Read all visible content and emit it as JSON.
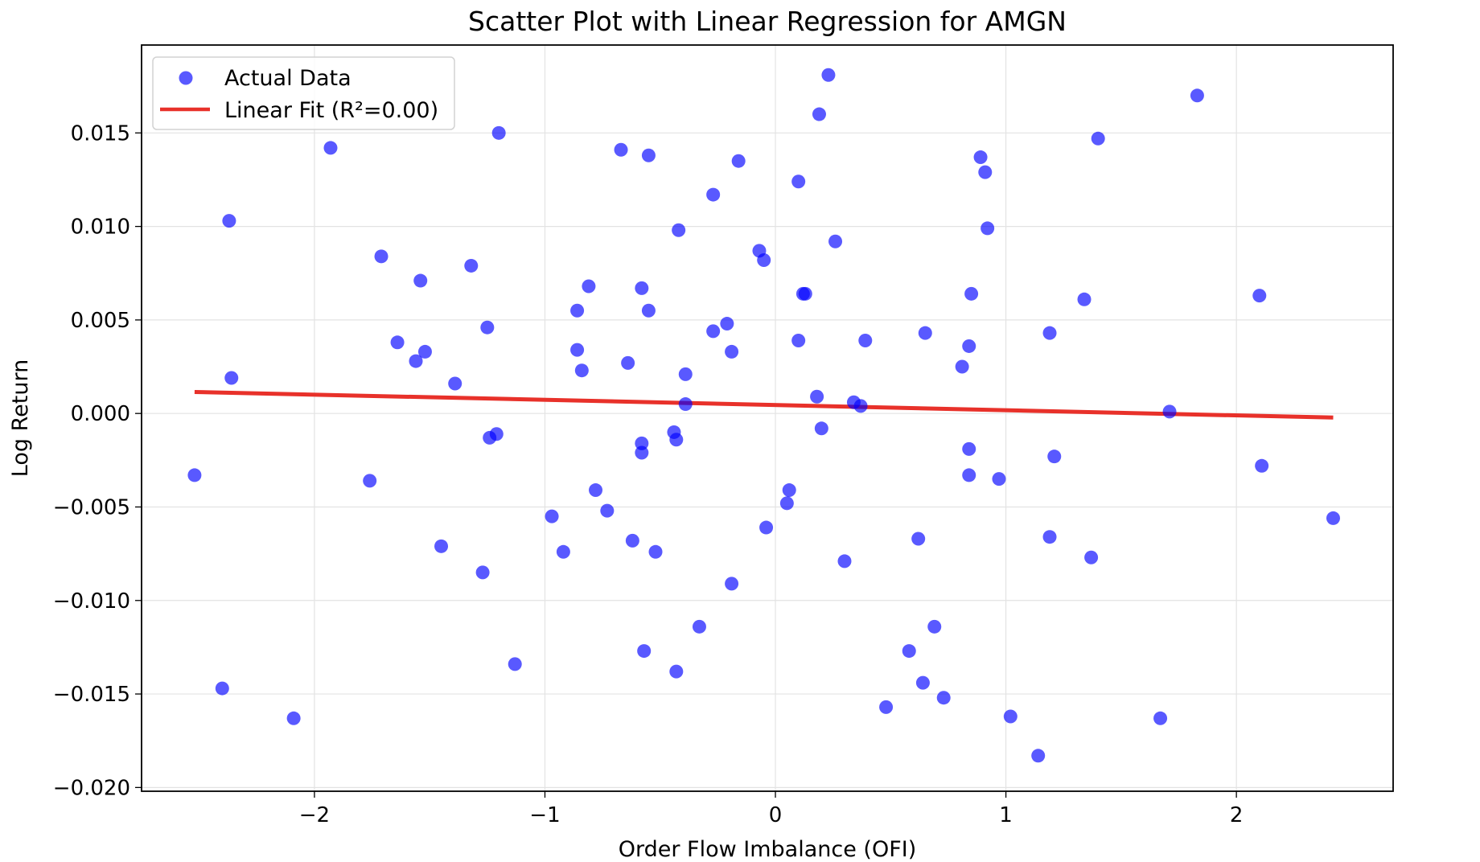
{
  "chart_data": {
    "type": "scatter",
    "title": "Scatter Plot with Linear Regression for AMGN",
    "xlabel": "Order Flow Imbalance (OFI)",
    "ylabel": "Log Return",
    "xlim": [
      -2.75,
      2.68
    ],
    "ylim": [
      -0.0202,
      0.0197
    ],
    "xticks": [
      -2,
      -1,
      0,
      1,
      2
    ],
    "xtick_labels": [
      "−2",
      "−1",
      "0",
      "1",
      "2"
    ],
    "yticks": [
      -0.02,
      -0.015,
      -0.01,
      -0.005,
      0.0,
      0.005,
      0.01,
      0.015
    ],
    "ytick_labels": [
      "−0.020",
      "−0.015",
      "−0.010",
      "−0.005",
      "0.000",
      "0.005",
      "0.010",
      "0.015"
    ],
    "grid": true,
    "legend_position": "top-left",
    "legend": {
      "scatter_label": "Actual Data",
      "fit_label": "Linear Fit (R²=0.00)"
    },
    "colors": {
      "points": "#0000ff",
      "fit_line": "#e8312a"
    },
    "series": [
      {
        "name": "Actual Data",
        "type": "scatter",
        "points": [
          [
            -2.52,
            -0.0033
          ],
          [
            -2.4,
            -0.0147
          ],
          [
            -2.37,
            0.0103
          ],
          [
            -2.36,
            0.0019
          ],
          [
            -2.09,
            -0.0163
          ],
          [
            -1.93,
            0.0142
          ],
          [
            -1.76,
            -0.0036
          ],
          [
            -1.71,
            0.0084
          ],
          [
            -1.64,
            0.0038
          ],
          [
            -1.56,
            0.0028
          ],
          [
            -1.54,
            0.0071
          ],
          [
            -1.52,
            0.0033
          ],
          [
            -1.45,
            -0.0071
          ],
          [
            -1.39,
            0.0016
          ],
          [
            -1.32,
            0.0079
          ],
          [
            -1.27,
            -0.0085
          ],
          [
            -1.25,
            0.0046
          ],
          [
            -1.24,
            -0.0013
          ],
          [
            -1.21,
            -0.0011
          ],
          [
            -1.2,
            0.015
          ],
          [
            -1.13,
            -0.0134
          ],
          [
            -0.97,
            -0.0055
          ],
          [
            -0.92,
            -0.0074
          ],
          [
            -0.86,
            0.0055
          ],
          [
            -0.86,
            0.0034
          ],
          [
            -0.84,
            0.0023
          ],
          [
            -0.81,
            0.0068
          ],
          [
            -0.78,
            -0.0041
          ],
          [
            -0.73,
            -0.0052
          ],
          [
            -0.67,
            0.0141
          ],
          [
            -0.64,
            0.0027
          ],
          [
            -0.62,
            -0.0068
          ],
          [
            -0.58,
            0.0067
          ],
          [
            -0.58,
            -0.0016
          ],
          [
            -0.58,
            -0.0021
          ],
          [
            -0.57,
            -0.0127
          ],
          [
            -0.55,
            0.0138
          ],
          [
            -0.55,
            0.0055
          ],
          [
            -0.52,
            -0.0074
          ],
          [
            -0.44,
            -0.001
          ],
          [
            -0.43,
            -0.0138
          ],
          [
            -0.43,
            -0.0014
          ],
          [
            -0.42,
            0.0098
          ],
          [
            -0.39,
            0.0021
          ],
          [
            -0.39,
            0.0005
          ],
          [
            -0.33,
            -0.0114
          ],
          [
            -0.27,
            0.0117
          ],
          [
            -0.27,
            0.0044
          ],
          [
            -0.21,
            0.0048
          ],
          [
            -0.19,
            -0.0091
          ],
          [
            -0.19,
            0.0033
          ],
          [
            -0.16,
            0.0135
          ],
          [
            -0.07,
            0.0087
          ],
          [
            -0.05,
            0.0082
          ],
          [
            -0.04,
            -0.0061
          ],
          [
            0.05,
            -0.0048
          ],
          [
            0.06,
            -0.0041
          ],
          [
            0.1,
            0.0039
          ],
          [
            0.1,
            0.0124
          ],
          [
            0.12,
            0.0064
          ],
          [
            0.13,
            0.0064
          ],
          [
            0.18,
            0.0009
          ],
          [
            0.19,
            0.016
          ],
          [
            0.2,
            -0.0008
          ],
          [
            0.23,
            0.0181
          ],
          [
            0.26,
            0.0092
          ],
          [
            0.3,
            -0.0079
          ],
          [
            0.34,
            0.0006
          ],
          [
            0.37,
            0.0004
          ],
          [
            0.39,
            0.0039
          ],
          [
            0.48,
            -0.0157
          ],
          [
            0.58,
            -0.0127
          ],
          [
            0.62,
            -0.0067
          ],
          [
            0.64,
            -0.0144
          ],
          [
            0.65,
            0.0043
          ],
          [
            0.69,
            -0.0114
          ],
          [
            0.73,
            -0.0152
          ],
          [
            0.81,
            0.0025
          ],
          [
            0.84,
            0.0036
          ],
          [
            0.84,
            -0.0019
          ],
          [
            0.84,
            -0.0033
          ],
          [
            0.85,
            0.0064
          ],
          [
            0.89,
            0.0137
          ],
          [
            0.91,
            0.0129
          ],
          [
            0.92,
            0.0099
          ],
          [
            0.97,
            -0.0035
          ],
          [
            1.02,
            -0.0162
          ],
          [
            1.14,
            -0.0183
          ],
          [
            1.19,
            0.0043
          ],
          [
            1.19,
            -0.0066
          ],
          [
            1.21,
            -0.0023
          ],
          [
            1.34,
            0.0061
          ],
          [
            1.37,
            -0.0077
          ],
          [
            1.4,
            0.0147
          ],
          [
            1.67,
            -0.0163
          ],
          [
            1.71,
            0.0001
          ],
          [
            1.83,
            0.017
          ],
          [
            2.1,
            0.0063
          ],
          [
            2.11,
            -0.0028
          ],
          [
            2.42,
            -0.0056
          ]
        ]
      },
      {
        "name": "Linear Fit (R²=0.00)",
        "type": "line",
        "points": [
          [
            -2.52,
            0.00115
          ],
          [
            2.42,
            -0.00022
          ]
        ]
      }
    ]
  }
}
